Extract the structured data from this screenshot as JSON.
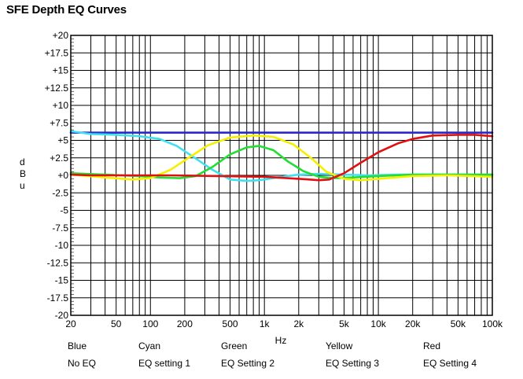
{
  "chart_data": {
    "type": "line",
    "title": "SFE Depth EQ Curves",
    "xlabel": "Hz",
    "ylabel": "dBu",
    "x_scale": "log",
    "xlim": [
      20,
      100000
    ],
    "ylim": [
      -20,
      20
    ],
    "grid": true,
    "y_ticks": [
      {
        "value": 20,
        "label": "+20"
      },
      {
        "value": 17.5,
        "label": "+17.5"
      },
      {
        "value": 15,
        "label": "+15"
      },
      {
        "value": 12.5,
        "label": "+12.5"
      },
      {
        "value": 10,
        "label": "+10"
      },
      {
        "value": 7.5,
        "label": "+7.5"
      },
      {
        "value": 5,
        "label": "+5"
      },
      {
        "value": 2.5,
        "label": "+2.5"
      },
      {
        "value": 0,
        "label": "+0"
      },
      {
        "value": -2.5,
        "label": "-2.5"
      },
      {
        "value": -5,
        "label": "-5"
      },
      {
        "value": -7.5,
        "label": "-7.5"
      },
      {
        "value": -10,
        "label": "-10"
      },
      {
        "value": -12.5,
        "label": "-12.5"
      },
      {
        "value": -15,
        "label": "-15"
      },
      {
        "value": -17.5,
        "label": "-17.5"
      },
      {
        "value": -20,
        "label": "-20"
      }
    ],
    "x_ticks": [
      {
        "value": 20,
        "label": "20"
      },
      {
        "value": 50,
        "label": "50"
      },
      {
        "value": 100,
        "label": "100"
      },
      {
        "value": 200,
        "label": "200"
      },
      {
        "value": 500,
        "label": "500"
      },
      {
        "value": 1000,
        "label": "1k"
      },
      {
        "value": 2000,
        "label": "2k"
      },
      {
        "value": 5000,
        "label": "5k"
      },
      {
        "value": 10000,
        "label": "10k"
      },
      {
        "value": 20000,
        "label": "20k"
      },
      {
        "value": 50000,
        "label": "50k"
      },
      {
        "value": 100000,
        "label": "100k"
      }
    ],
    "series": [
      {
        "name": "Blue",
        "setting": "No EQ",
        "color": "#2a2ac8",
        "x": [
          20,
          100000
        ],
        "y": [
          6.1,
          6.1
        ]
      },
      {
        "name": "Cyan",
        "setting": "EQ setting 1",
        "color": "#40e0f0",
        "x": [
          20,
          30,
          50,
          80,
          120,
          170,
          240,
          350,
          500,
          700,
          900,
          1300,
          2000,
          3000,
          5000,
          8000,
          15000,
          30000,
          100000
        ],
        "y": [
          6.3,
          5.9,
          5.8,
          5.6,
          5.2,
          4.2,
          2.6,
          0.8,
          -0.6,
          -0.8,
          -0.7,
          -0.3,
          0.1,
          0.2,
          0.1,
          0.0,
          0.1,
          0.1,
          0.1
        ]
      },
      {
        "name": "Green",
        "setting": "EQ Setting 2",
        "color": "#22dd33",
        "x": [
          20,
          40,
          80,
          120,
          180,
          250,
          350,
          500,
          700,
          900,
          1200,
          1600,
          2200,
          3000,
          4000,
          6000,
          10000,
          20000,
          100000
        ],
        "y": [
          0.3,
          0.1,
          -0.1,
          -0.3,
          -0.4,
          -0.1,
          1.2,
          3.0,
          4.0,
          4.2,
          3.6,
          2.0,
          0.6,
          -0.2,
          -0.4,
          -0.3,
          -0.1,
          0.1,
          0.1
        ]
      },
      {
        "name": "Yellow",
        "setting": "EQ Setting 3",
        "color": "#f4f000",
        "x": [
          20,
          40,
          70,
          100,
          150,
          220,
          320,
          500,
          800,
          1200,
          1800,
          2600,
          3500,
          5000,
          7000,
          10000,
          20000,
          40000,
          100000
        ],
        "y": [
          0.1,
          -0.3,
          -0.6,
          -0.4,
          0.8,
          2.6,
          4.3,
          5.4,
          5.7,
          5.5,
          4.4,
          2.4,
          0.5,
          -0.5,
          -0.7,
          -0.5,
          -0.1,
          0.0,
          -0.2
        ]
      },
      {
        "name": "Red",
        "setting": "EQ Setting 4",
        "color": "#e01010",
        "x": [
          20,
          30,
          60,
          150,
          400,
          1000,
          2000,
          3000,
          3700,
          5000,
          7000,
          10000,
          15000,
          20000,
          30000,
          50000,
          70000,
          100000
        ],
        "y": [
          0.1,
          0.0,
          0.0,
          0.0,
          -0.1,
          -0.2,
          -0.5,
          -0.7,
          -0.6,
          0.3,
          1.8,
          3.3,
          4.6,
          5.2,
          5.7,
          5.8,
          5.8,
          5.6
        ]
      }
    ],
    "legend": [
      {
        "name": "Blue",
        "setting": "No EQ"
      },
      {
        "name": "Cyan",
        "setting": "EQ setting 1"
      },
      {
        "name": "Green",
        "setting": "EQ Setting 2"
      },
      {
        "name": "Yellow",
        "setting": "EQ Setting 3"
      },
      {
        "name": "Red",
        "setting": "EQ Setting 4"
      }
    ]
  }
}
